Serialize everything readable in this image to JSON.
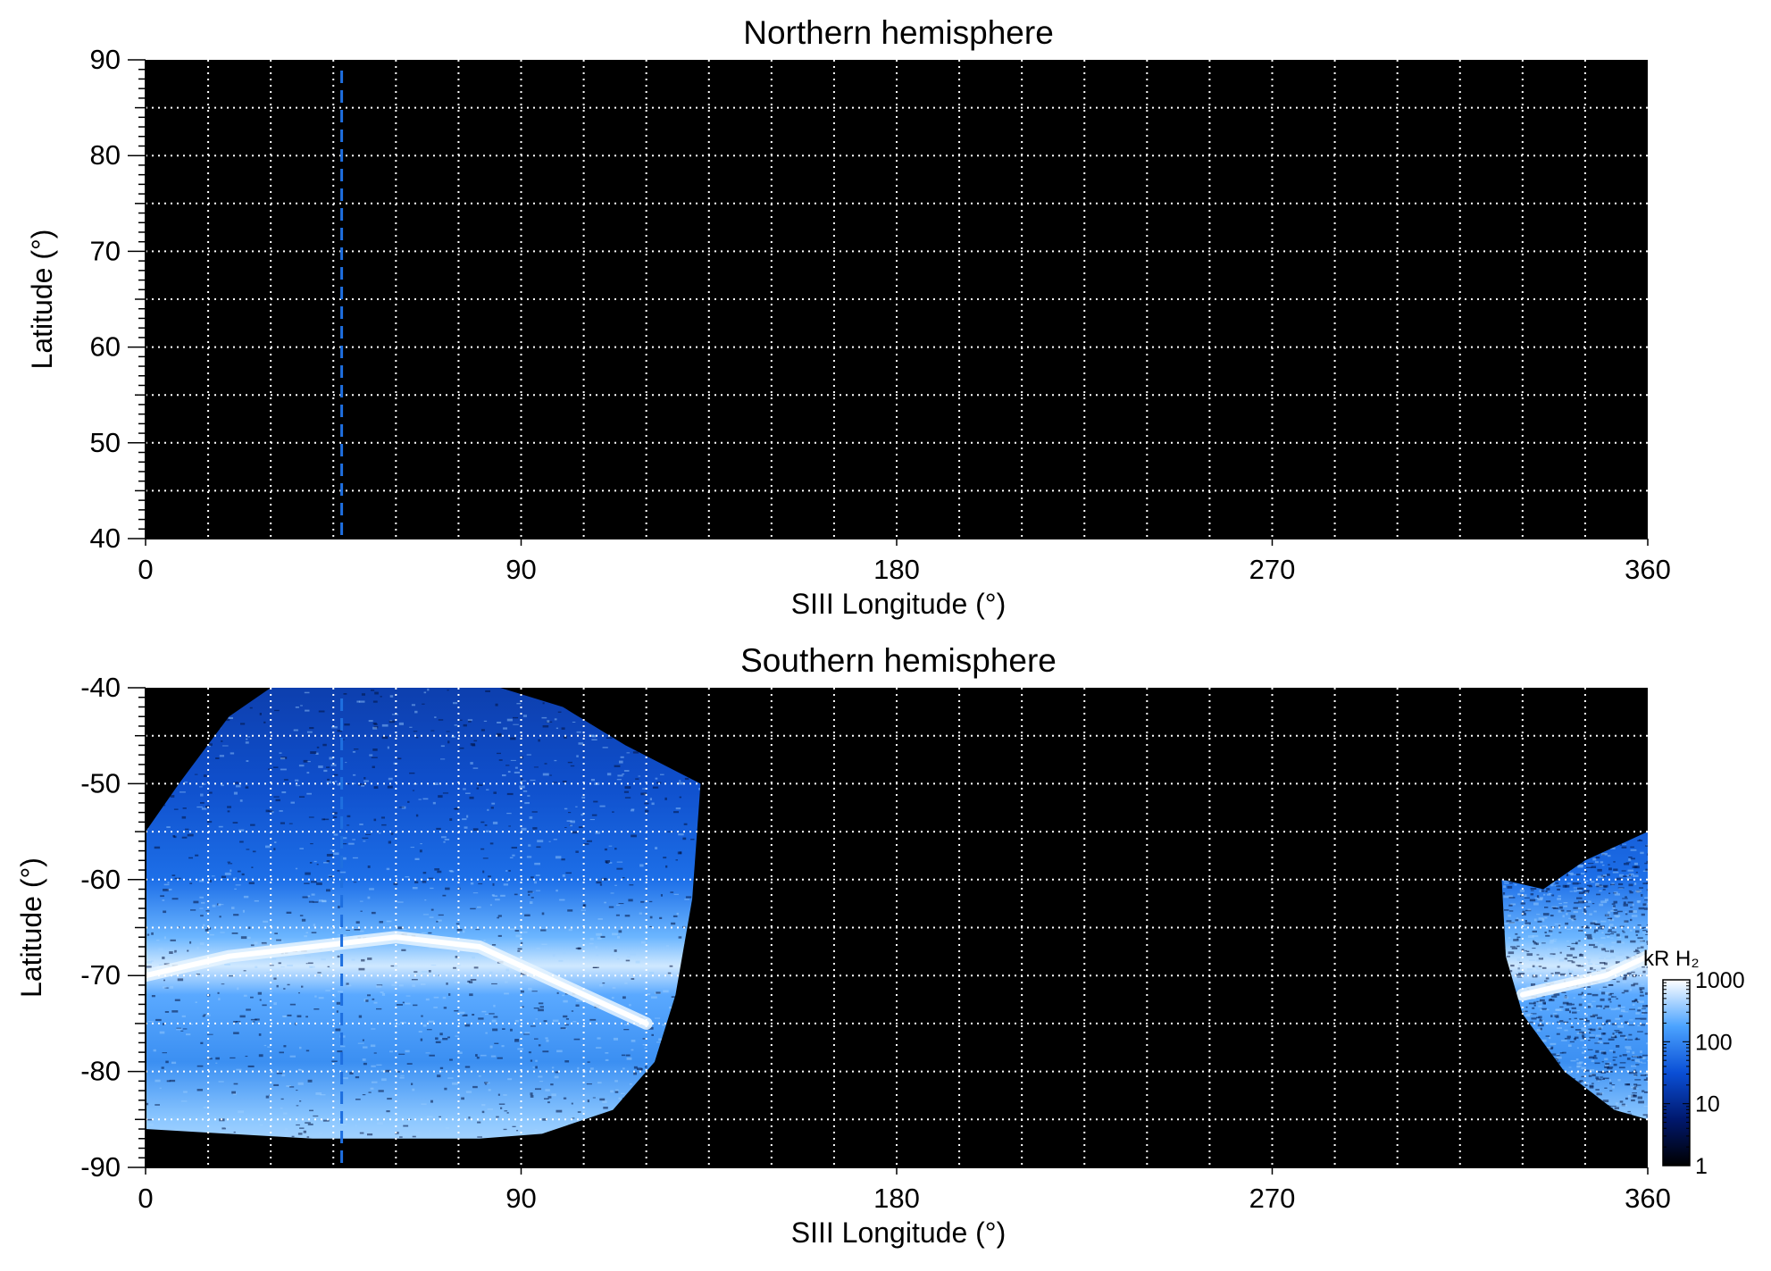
{
  "chart_data": [
    {
      "type": "heatmap",
      "title": "Northern hemisphere",
      "xlabel": "SIII Longitude (°)",
      "ylabel": "Latitude (°)",
      "xlim": [
        0,
        360
      ],
      "ylim": [
        40,
        90
      ],
      "xticks": [
        "0",
        "90",
        "180",
        "270",
        "360"
      ],
      "xtick_values": [
        0,
        90,
        180,
        270,
        360
      ],
      "yticks": [
        "90",
        "80",
        "70",
        "60",
        "50",
        "40"
      ],
      "ytick_values": [
        90,
        80,
        70,
        60,
        50,
        40
      ],
      "grid": true,
      "grid_style": "dotted white",
      "grid_spacing_deg": {
        "longitude": 15,
        "latitude": 5
      },
      "reference_line": {
        "longitude": 47,
        "style": "dashed",
        "color": "#1e6fe0"
      },
      "emission_regions": [],
      "background": "#000000"
    },
    {
      "type": "heatmap",
      "title": "Southern hemisphere",
      "xlabel": "SIII Longitude (°)",
      "ylabel": "Latitude (°)",
      "xlim": [
        0,
        360
      ],
      "ylim": [
        -90,
        -40
      ],
      "xticks": [
        "0",
        "90",
        "180",
        "270",
        "360"
      ],
      "xtick_values": [
        0,
        90,
        180,
        270,
        360
      ],
      "yticks": [
        "-40",
        "-50",
        "-60",
        "-70",
        "-80",
        "-90"
      ],
      "ytick_values": [
        -40,
        -50,
        -60,
        -70,
        -80,
        -90
      ],
      "grid": true,
      "grid_style": "dotted white",
      "grid_spacing_deg": {
        "longitude": 15,
        "latitude": 5
      },
      "reference_line": {
        "longitude": 47,
        "style": "dashed",
        "color": "#1e6fe0"
      },
      "background": "#000000",
      "emission_regions": [
        {
          "name": "",
          "boundary": [
            [
              0,
              -55
            ],
            [
              8,
              -50
            ],
            [
              20,
              -43
            ],
            [
              30,
              -40
            ],
            [
              85,
              -40
            ],
            [
              100,
              -42
            ],
            [
              115,
              -46
            ],
            [
              133,
              -50
            ],
            [
              131,
              -62
            ],
            [
              127,
              -72
            ],
            [
              122,
              -79
            ],
            [
              112,
              -84
            ],
            [
              95,
              -86.5
            ],
            [
              80,
              -87
            ],
            [
              60,
              -87
            ],
            [
              40,
              -87
            ],
            [
              20,
              -86.5
            ],
            [
              0,
              -86
            ]
          ],
          "peak_band": {
            "longitudes": [
              0,
              20,
              40,
              60,
              80,
              100,
              120
            ],
            "latitudes": [
              -70,
              -68,
              -67,
              -66,
              -67,
              -71,
              -75
            ],
            "peak_kR": 1000
          },
          "typical_kR": 100
        },
        {
          "name": "",
          "boundary": [
            [
              325,
              -60
            ],
            [
              335,
              -61
            ],
            [
              345,
              -58
            ],
            [
              360,
              -55
            ],
            [
              360,
              -85
            ],
            [
              352,
              -84
            ],
            [
              340,
              -80
            ],
            [
              330,
              -74
            ],
            [
              326,
              -68
            ]
          ],
          "peak_band": {
            "longitudes": [
              330,
              340,
              350,
              360
            ],
            "latitudes": [
              -72,
              -71,
              -70,
              -68
            ],
            "peak_kR": 1000
          },
          "typical_kR": 100
        }
      ],
      "colorbar": {
        "label": "kR H₂",
        "ticks": [
          "1000",
          "100",
          "10",
          "1"
        ],
        "tick_values": [
          1000,
          100,
          10,
          1
        ],
        "scale": "log",
        "range": [
          1,
          1000
        ],
        "colors": [
          "#000000",
          "#00186e",
          "#0a4fd6",
          "#4ba3ff",
          "#ffffff"
        ]
      }
    }
  ]
}
